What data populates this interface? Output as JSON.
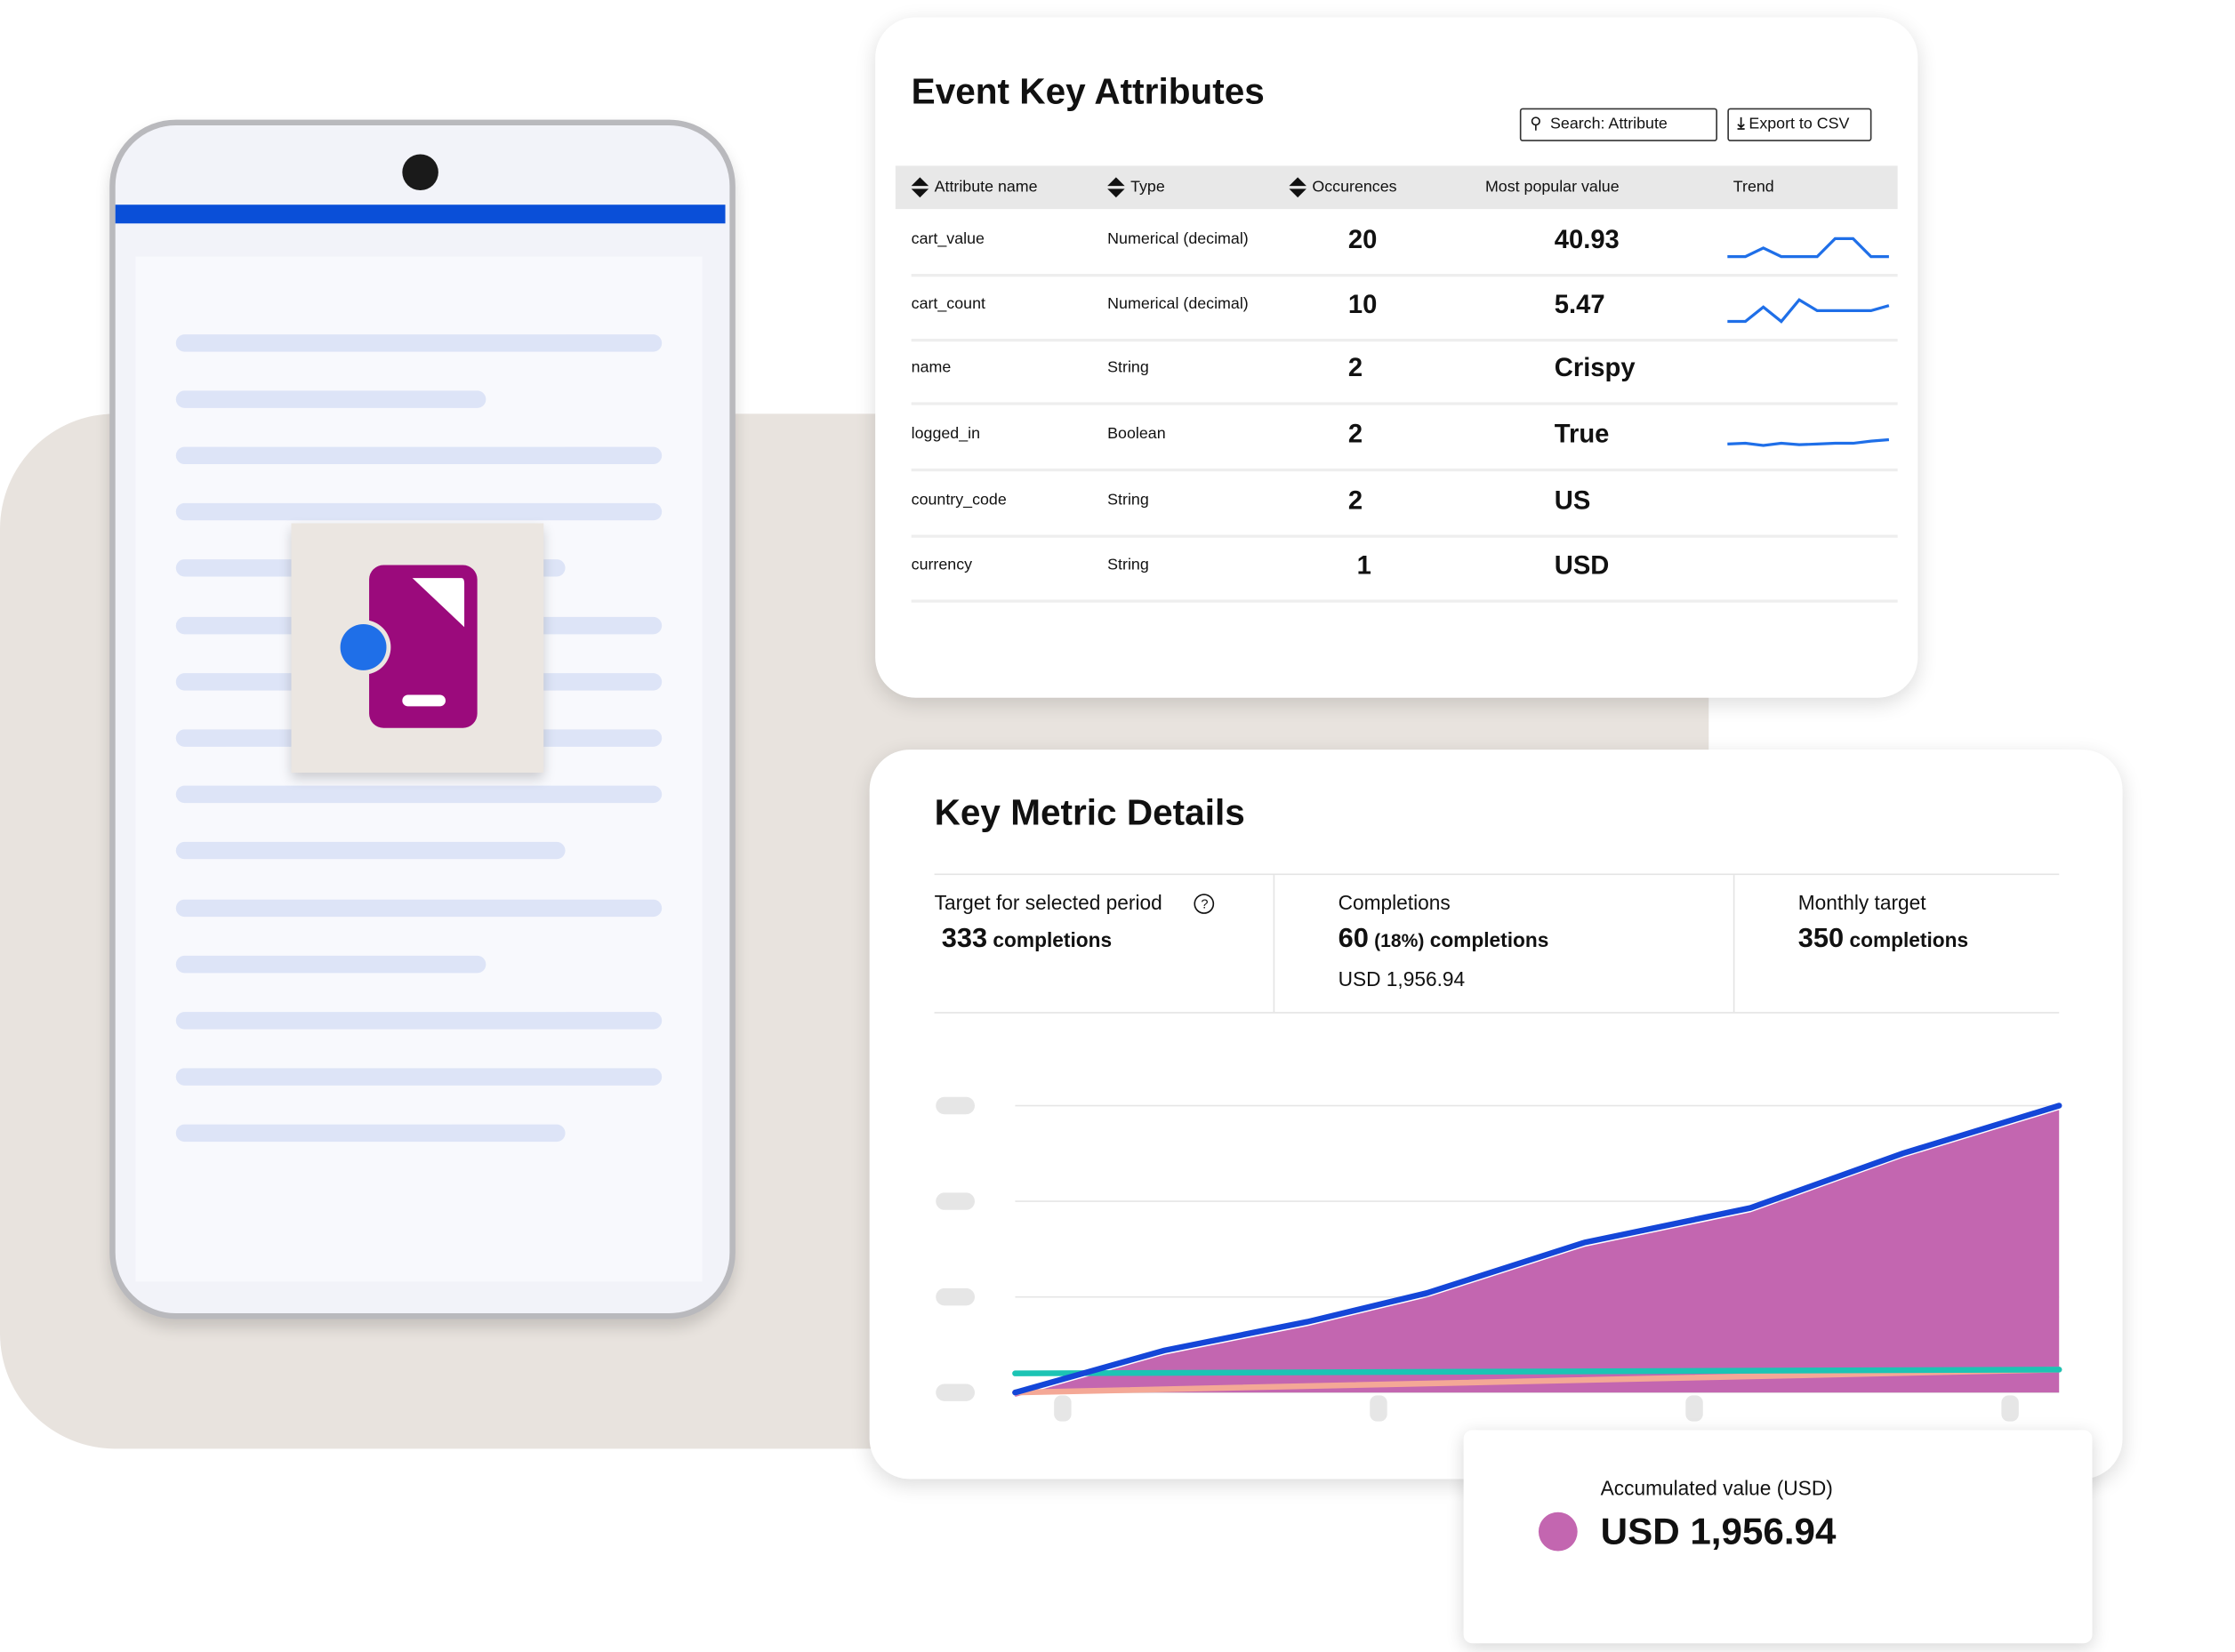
{
  "attributes_card": {
    "title": "Event Key Attributes",
    "search_placeholder": "Search: Attribute",
    "export_label": "Export to CSV",
    "columns": [
      "Attribute name",
      "Type",
      "Occurences",
      "Most popular value",
      "Trend"
    ],
    "rows": [
      {
        "name": "cart_value",
        "type": "Numerical (decimal)",
        "occurrences": "20",
        "value": "40.93",
        "trend": [
          0,
          0,
          1.2,
          0,
          0,
          0,
          2.5,
          2.5,
          0,
          0
        ]
      },
      {
        "name": "cart_count",
        "type": "Numerical (decimal)",
        "occurrences": "10",
        "value": "5.47",
        "trend": [
          0,
          0,
          2,
          0,
          3,
          1.5,
          1.5,
          1.5,
          1.5,
          2.2
        ]
      },
      {
        "name": "name",
        "type": "String",
        "occurrences": "2",
        "value": "Crispy",
        "trend": null
      },
      {
        "name": "logged_in",
        "type": "Boolean",
        "occurrences": "2",
        "value": "True",
        "trend": [
          1,
          1.1,
          0.8,
          1.1,
          0.9,
          1,
          1.1,
          1.1,
          1.4,
          1.6
        ]
      },
      {
        "name": "country_code",
        "type": "String",
        "occurrences": "2",
        "value": "US",
        "trend": null
      },
      {
        "name": "currency",
        "type": "String",
        "occurrences": "1",
        "value": "USD",
        "trend": null
      }
    ],
    "trend_color": "#1f6fe8"
  },
  "metrics_card": {
    "title": "Key Metric Details",
    "metrics": [
      {
        "label": "Target for selected period",
        "value": "333",
        "suffix": "completions",
        "help_icon": "question-circle-icon"
      },
      {
        "label": "Completions",
        "value": "60",
        "percent": "(18%)",
        "suffix": "completions",
        "sub": "USD 1,956.94"
      },
      {
        "label": "Monthly target",
        "value": "350",
        "suffix": "completions"
      }
    ]
  },
  "chart_data": {
    "type": "area",
    "title": "",
    "xlabel": "",
    "ylabel": "",
    "grid": true,
    "ylim": [
      0,
      3
    ],
    "xlim": [
      0,
      7
    ],
    "series": [
      {
        "kind": "line+area",
        "color": "#1446d8",
        "fill": "#c366b0",
        "x": [
          0,
          1.0,
          1.96,
          2.76,
          3.82,
          4.93,
          5.95,
          7
        ],
        "y": [
          0,
          0.44,
          0.74,
          1.04,
          1.57,
          1.93,
          2.5,
          3.0
        ]
      },
      {
        "kind": "line",
        "color": "#1cc4b4",
        "x": [
          0,
          7
        ],
        "y": [
          0.2,
          0.24
        ]
      },
      {
        "kind": "line",
        "color": "#f4a896",
        "x": [
          0,
          7
        ],
        "y": [
          0,
          0.24
        ]
      }
    ]
  },
  "tooltip": {
    "label": "Accumulated value (USD)",
    "value": "USD 1,956.94",
    "color": "#c366b0"
  },
  "colors": {
    "accent_blue": "#0a4fd8",
    "magenta": "#9b0a7c",
    "beige": "#e8e3de"
  }
}
